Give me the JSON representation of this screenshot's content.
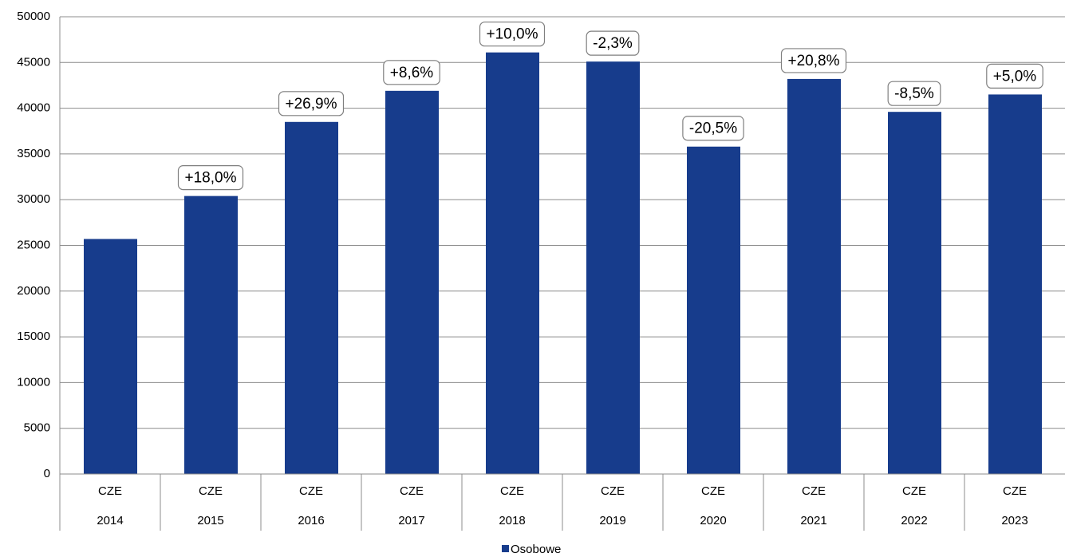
{
  "chart_data": {
    "type": "bar",
    "categories": [
      "2014",
      "2015",
      "2016",
      "2017",
      "2018",
      "2019",
      "2020",
      "2021",
      "2022",
      "2023"
    ],
    "country": [
      "CZE",
      "CZE",
      "CZE",
      "CZE",
      "CZE",
      "CZE",
      "CZE",
      "CZE",
      "CZE",
      "CZE"
    ],
    "series": [
      {
        "name": "Osobowe",
        "color": "#173c8c",
        "values": [
          25700,
          30400,
          38500,
          41900,
          46100,
          45100,
          35800,
          43200,
          39600,
          41500
        ]
      }
    ],
    "change_labels": [
      null,
      "+18,0%",
      "+26,9%",
      "+8,6%",
      "+10,0%",
      "-2,3%",
      "-20,5%",
      "+20,8%",
      "-8,5%",
      "+5,0%"
    ],
    "ylim": [
      0,
      50000
    ],
    "yticks": [
      0,
      5000,
      10000,
      15000,
      20000,
      25000,
      30000,
      35000,
      40000,
      45000,
      50000
    ],
    "grid": true,
    "legend": "bottom"
  }
}
